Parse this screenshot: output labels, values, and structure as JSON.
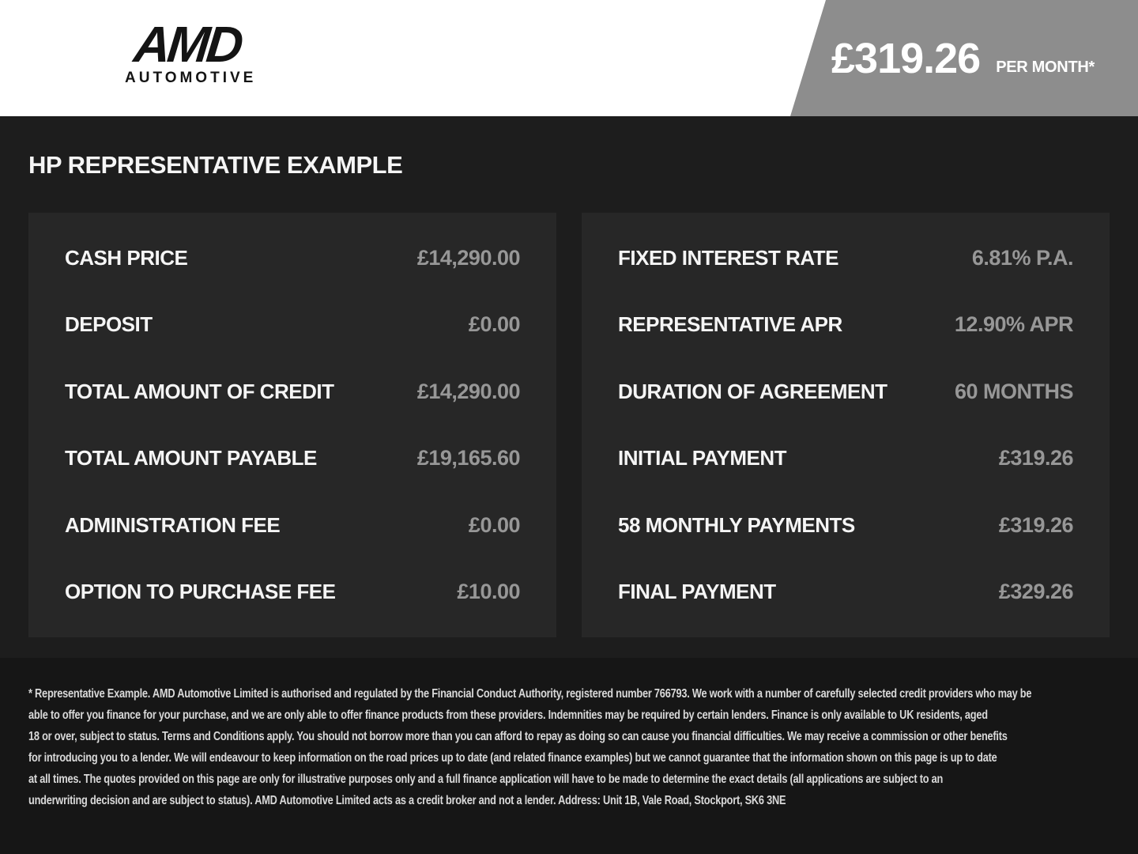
{
  "header": {
    "logo_brand": "AMD",
    "logo_sub": "AUTOMOTIVE",
    "banner_amount": "£319.26",
    "banner_period": "PER MONTH*"
  },
  "main": {
    "title": "HP REPRESENTATIVE EXAMPLE",
    "left_panel": {
      "rows": [
        {
          "label": "CASH PRICE",
          "value": "£14,290.00"
        },
        {
          "label": "DEPOSIT",
          "value": "£0.00"
        },
        {
          "label": "TOTAL AMOUNT OF CREDIT",
          "value": "£14,290.00"
        },
        {
          "label": "TOTAL AMOUNT PAYABLE",
          "value": "£19,165.60"
        },
        {
          "label": "ADMINISTRATION FEE",
          "value": "£0.00"
        },
        {
          "label": "OPTION TO PURCHASE FEE",
          "value": "£10.00"
        }
      ]
    },
    "right_panel": {
      "rows": [
        {
          "label": "FIXED INTEREST RATE",
          "value": "6.81% P.A."
        },
        {
          "label": "REPRESENTATIVE APR",
          "value": "12.90% APR"
        },
        {
          "label": "DURATION OF AGREEMENT",
          "value": "60 MONTHS"
        },
        {
          "label": "INITIAL PAYMENT",
          "value": "£319.26"
        },
        {
          "label": "58 MONTHLY PAYMENTS",
          "value": "£319.26"
        },
        {
          "label": "FINAL PAYMENT",
          "value": "£329.26"
        }
      ]
    }
  },
  "footer": {
    "lines": [
      "* Representative Example. AMD Automotive Limited is authorised and regulated by the Financial Conduct Authority, registered number 766793. We work with a number of carefully selected credit providers who may be",
      "able to offer you finance for your purchase, and we are only able to offer finance products from these providers. Indemnities may be required by certain lenders. Finance is only available to UK residents, aged",
      "18 or over, subject to status. Terms and Conditions apply. You should not borrow more than you can afford to repay as doing so can cause you financial difficulties. We may receive a commission or other benefits",
      "for introducing you to a lender. We will endeavour to keep information on the road prices up to date (and related finance examples) but we cannot guarantee that the information shown on this page is up to date",
      "at all times. The quotes provided on this page are only for illustrative purposes only and a full finance application will have to be made to determine the exact details (all applications are subject to an",
      "underwriting decision and are subject to status). AMD Automotive Limited acts as a credit broker and not a lender. Address: Unit 1B, Vale Road, Stockport, SK6 3NE"
    ]
  },
  "colors": {
    "banner_gray": "#8d8d8d",
    "section_bg": "#1d1d1d",
    "panel_bg": "#272727",
    "footer_bg": "#161616",
    "label_color": "#f5f5f5",
    "value_color": "#979797",
    "logo_color": "#141414"
  }
}
